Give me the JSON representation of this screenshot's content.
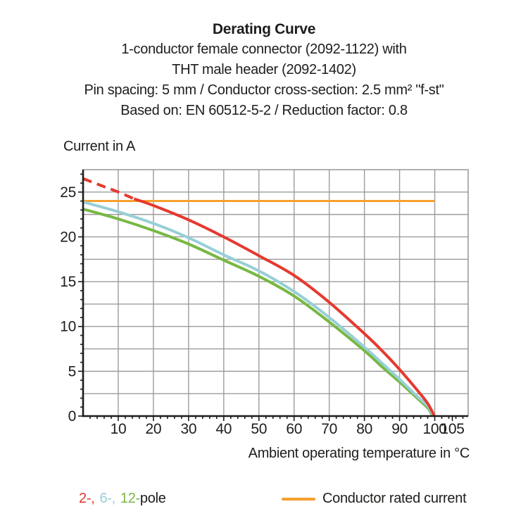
{
  "header": {
    "title": "Derating Curve",
    "subtitle_lines": [
      "1-conductor female connector (2092-1122) with",
      "THT male header (2092-1402)",
      "Pin spacing: 5 mm / Conductor cross-section: 2.5 mm² \"f-st\"",
      "Based on: EN 60512-5-2 / Reduction factor: 0.8"
    ]
  },
  "colors": {
    "red": "#e6392e",
    "teal": "#98cfd7",
    "green": "#77b843",
    "orange": "#f6a02d",
    "grid": "#9c9c9c",
    "frame": "#8f8f8f",
    "axis": "#1d1d1b",
    "text": "#1d1d1b"
  },
  "legend": {
    "pole_items": [
      {
        "label": "2-,",
        "color": "#e6392e"
      },
      {
        "label": "6-,",
        "color": "#98cfd7"
      },
      {
        "label": "12-",
        "color": "#77b843"
      }
    ],
    "pole_suffix": "pole",
    "rated": {
      "label": "Conductor rated current",
      "color": "#f6a02d"
    }
  },
  "chart_data": {
    "type": "line",
    "title": "Derating Curve",
    "xlabel": "Ambient operating temperature in °C",
    "ylabel": "Current in A",
    "xlim": [
      0,
      109.5
    ],
    "ylim": [
      0,
      27.5
    ],
    "x_ticks": [
      10,
      20,
      30,
      40,
      50,
      60,
      70,
      80,
      90,
      100,
      105
    ],
    "y_ticks": [
      0,
      5,
      10,
      15,
      20,
      25
    ],
    "x_gridlines": [
      10,
      20,
      30,
      40,
      50,
      60,
      70,
      80,
      90,
      100
    ],
    "y_gridlines": [
      2.5,
      5,
      7.5,
      10,
      12.5,
      15,
      17.5,
      20,
      22.5,
      25
    ],
    "x_minor_tick_step": 2,
    "y_minor_tick_step": 1,
    "grid": true,
    "legend_position": "bottom",
    "series": [
      {
        "name": "Conductor rated current",
        "color": "#f6a02d",
        "dash": false,
        "width": 3,
        "points": [
          [
            0,
            24
          ],
          [
            100,
            24
          ]
        ]
      },
      {
        "name": "12-pole",
        "color": "#77b843",
        "dash": false,
        "width": 4,
        "points": [
          [
            0,
            23.1
          ],
          [
            10,
            22.0
          ],
          [
            20,
            20.7
          ],
          [
            30,
            19.2
          ],
          [
            40,
            17.4
          ],
          [
            50,
            15.6
          ],
          [
            60,
            13.4
          ],
          [
            70,
            10.5
          ],
          [
            80,
            7.3
          ],
          [
            85,
            5.5
          ],
          [
            90,
            3.8
          ],
          [
            95,
            2.0
          ],
          [
            98,
            0.9
          ],
          [
            99.4,
            0
          ]
        ]
      },
      {
        "name": "6-pole",
        "color": "#98cfd7",
        "dash": false,
        "width": 4,
        "points": [
          [
            0,
            23.9
          ],
          [
            10,
            22.8
          ],
          [
            20,
            21.5
          ],
          [
            30,
            19.9
          ],
          [
            40,
            18.0
          ],
          [
            50,
            16.2
          ],
          [
            60,
            13.9
          ],
          [
            70,
            11.0
          ],
          [
            80,
            7.7
          ],
          [
            85,
            5.9
          ],
          [
            90,
            4.1
          ],
          [
            95,
            2.2
          ],
          [
            98,
            1.1
          ],
          [
            99.6,
            0
          ]
        ]
      },
      {
        "name": "2-pole",
        "color": "#e6392e",
        "dash": false,
        "width": 4,
        "points": [
          [
            14.5,
            24.25
          ],
          [
            20,
            23.5
          ],
          [
            30,
            21.9
          ],
          [
            40,
            20.0
          ],
          [
            50,
            17.9
          ],
          [
            60,
            15.7
          ],
          [
            70,
            12.7
          ],
          [
            80,
            9.2
          ],
          [
            85,
            7.3
          ],
          [
            90,
            5.2
          ],
          [
            95,
            2.9
          ],
          [
            98,
            1.4
          ],
          [
            99.9,
            0
          ]
        ]
      },
      {
        "name": "2-pole (projected above rated current)",
        "color": "#e6392e",
        "dash": true,
        "width": 4,
        "points": [
          [
            0,
            26.5
          ],
          [
            5,
            25.75
          ],
          [
            10,
            25.0
          ],
          [
            14.5,
            24.25
          ]
        ]
      }
    ]
  }
}
